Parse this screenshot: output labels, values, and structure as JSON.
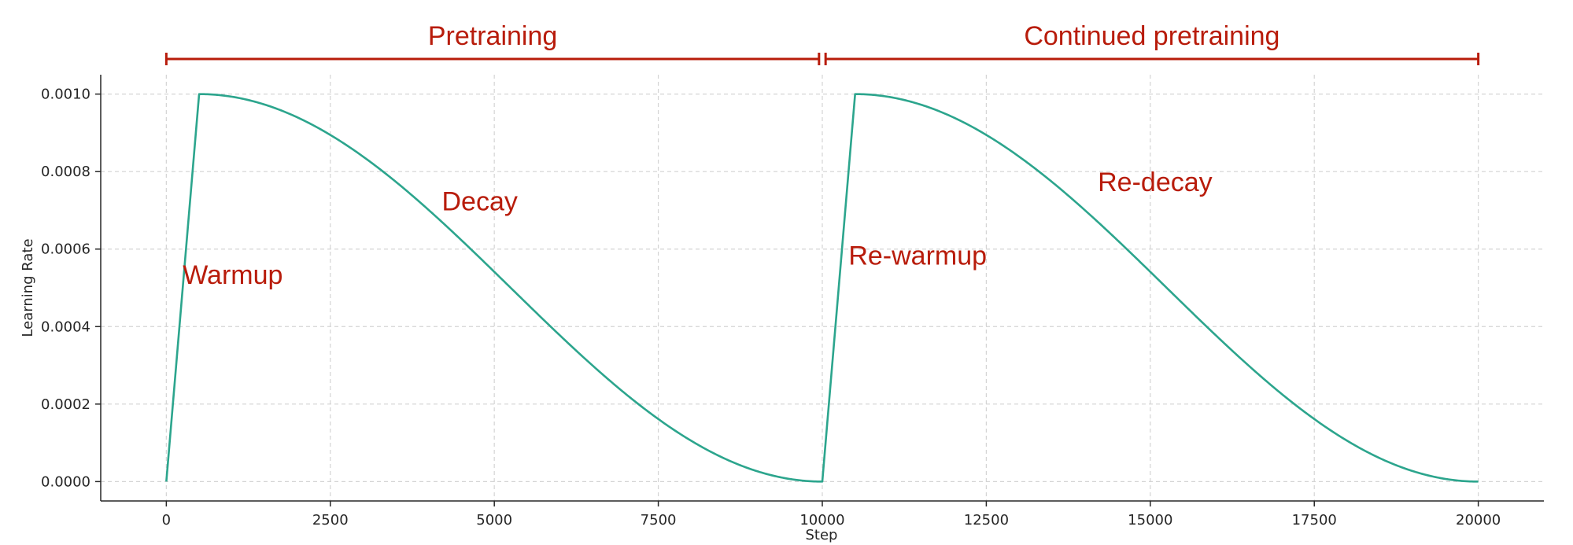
{
  "colors": {
    "line": "#2ca58d",
    "annotation": "#b81c0b",
    "axis": "#262626",
    "grid": "#d4d4d4"
  },
  "chart_data": {
    "type": "line",
    "xlabel": "Step",
    "ylabel": "Learning Rate",
    "xlim": [
      -1000,
      21000
    ],
    "ylim": [
      -5e-05,
      0.00105
    ],
    "xticks": [
      0,
      2500,
      5000,
      7500,
      10000,
      12500,
      15000,
      17500,
      20000
    ],
    "xtick_labels": [
      "0",
      "2500",
      "5000",
      "7500",
      "10000",
      "12500",
      "15000",
      "17500",
      "20000"
    ],
    "yticks": [
      0.0,
      0.0002,
      0.0004,
      0.0006,
      0.0008,
      0.001
    ],
    "ytick_labels": [
      "0.0000",
      "0.0002",
      "0.0004",
      "0.0006",
      "0.0008",
      "0.0010"
    ],
    "grid": true,
    "schedule": {
      "peak_lr": 0.001,
      "warmup_steps": 500,
      "phase_steps": 10000,
      "phase_starts": [
        0,
        10000
      ]
    },
    "series": [
      {
        "x": [
          0,
          500,
          1000,
          1500,
          2000,
          2500,
          3000,
          3500,
          4000,
          4500,
          5000,
          5500,
          6000,
          6500,
          7000,
          7500,
          8000,
          8500,
          9000,
          9500,
          10000,
          10500,
          11000,
          11500,
          12000,
          12500,
          13000,
          13500,
          14000,
          14500,
          15000,
          15500,
          16000,
          16500,
          17000,
          17500,
          18000,
          18500,
          19000,
          19500,
          20000
        ],
        "y": [
          0.0,
          0.001,
          0.000993,
          0.000973,
          0.00094,
          0.000895,
          0.00084,
          0.000776,
          0.000706,
          0.000631,
          0.000552,
          0.000474,
          0.000396,
          0.000322,
          0.000253,
          0.000191,
          0.000137,
          9.3e-05,
          6e-05,
          3.6e-05,
          0.0,
          0.001,
          0.000993,
          0.000973,
          0.00094,
          0.000895,
          0.00084,
          0.000776,
          0.000706,
          0.000631,
          0.000552,
          0.000474,
          0.000396,
          0.000322,
          0.000253,
          0.000191,
          0.000137,
          9.3e-05,
          6e-05,
          3.6e-05,
          0.0
        ]
      }
    ],
    "annotations": [
      {
        "text": "Warmup",
        "x": 250,
        "y": 0.00051
      },
      {
        "text": "Decay",
        "x": 4200,
        "y": 0.0007
      },
      {
        "text": "Re-warmup",
        "x": 10400,
        "y": 0.00056
      },
      {
        "text": "Re-decay",
        "x": 14200,
        "y": 0.00075
      }
    ],
    "phases": [
      {
        "label": "Pretraining",
        "start": 0,
        "end": 9950
      },
      {
        "label": "Continued pretraining",
        "start": 10050,
        "end": 20000
      }
    ]
  }
}
